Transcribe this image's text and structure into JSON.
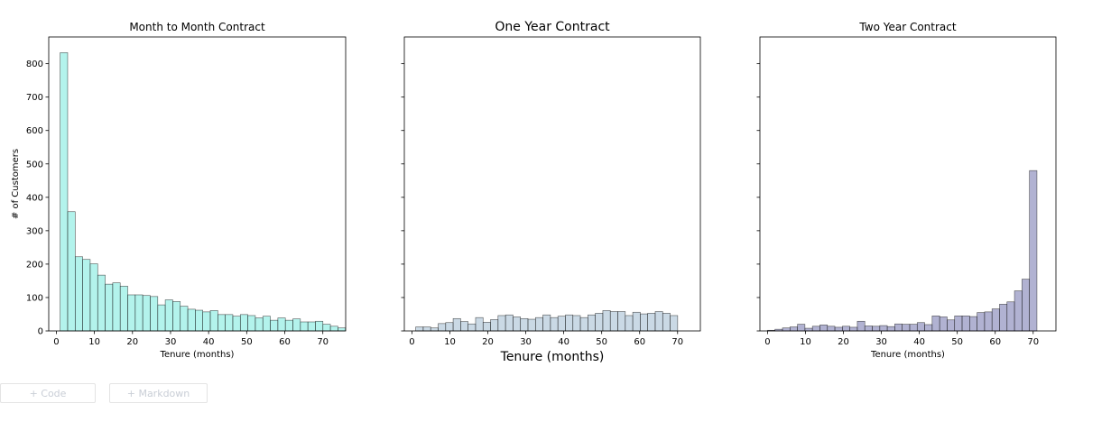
{
  "notebook": {
    "add_code_label": "+ Code",
    "add_markdown_label": "+ Markdown"
  },
  "chart_data": [
    {
      "type": "bar",
      "title": "Month to Month Contract",
      "xlabel": "Tenure (months)",
      "ylabel": "# of Customers",
      "xlim": [
        -2,
        76
      ],
      "ylim": [
        0,
        880
      ],
      "xticks": [
        0,
        10,
        20,
        30,
        40,
        50,
        60,
        70
      ],
      "yticks": [
        0,
        100,
        200,
        300,
        400,
        500,
        600,
        700,
        800
      ],
      "bin_start": 1,
      "bin_width": 1.972,
      "color": "#40e0d0",
      "values": [
        833,
        357,
        222,
        214,
        201,
        167,
        140,
        144,
        134,
        108,
        108,
        106,
        103,
        78,
        93,
        88,
        74,
        65,
        62,
        57,
        61,
        49,
        49,
        44,
        49,
        46,
        39,
        44,
        32,
        39,
        32,
        36,
        27,
        27,
        29,
        20,
        14,
        9
      ]
    },
    {
      "type": "bar",
      "title": "One Year Contract",
      "xlabel": "Tenure (months)",
      "ylabel": "",
      "xlim": [
        -2,
        76
      ],
      "ylim": [
        0,
        880
      ],
      "xticks": [
        0,
        10,
        20,
        30,
        40,
        50,
        60,
        70
      ],
      "yticks": [
        0,
        100,
        200,
        300,
        400,
        500,
        600,
        700,
        800
      ],
      "bin_start": 1,
      "bin_width": 1.972,
      "color": "#7b9fbe",
      "values": [
        12,
        12,
        9,
        22,
        25,
        37,
        28,
        21,
        40,
        26,
        34,
        46,
        48,
        42,
        37,
        35,
        40,
        48,
        40,
        44,
        48,
        46,
        40,
        48,
        53,
        61,
        58,
        58,
        46,
        56,
        51,
        53,
        58,
        53,
        46
      ]
    },
    {
      "type": "bar",
      "title": "Two Year Contract",
      "xlabel": "Tenure (months)",
      "ylabel": "",
      "xlim": [
        -2,
        76
      ],
      "ylim": [
        0,
        880
      ],
      "xticks": [
        0,
        10,
        20,
        30,
        40,
        50,
        60,
        70
      ],
      "yticks": [
        0,
        100,
        200,
        300,
        400,
        500,
        600,
        700,
        800
      ],
      "bin_start": 0,
      "bin_width": 1.972,
      "color": "#3d3f8f",
      "values": [
        2,
        5,
        9,
        12,
        20,
        8,
        14,
        18,
        14,
        11,
        14,
        11,
        29,
        15,
        14,
        16,
        13,
        21,
        20,
        20,
        25,
        19,
        45,
        42,
        33,
        45,
        45,
        43,
        55,
        57,
        66,
        80,
        87,
        120,
        155,
        480
      ]
    }
  ]
}
